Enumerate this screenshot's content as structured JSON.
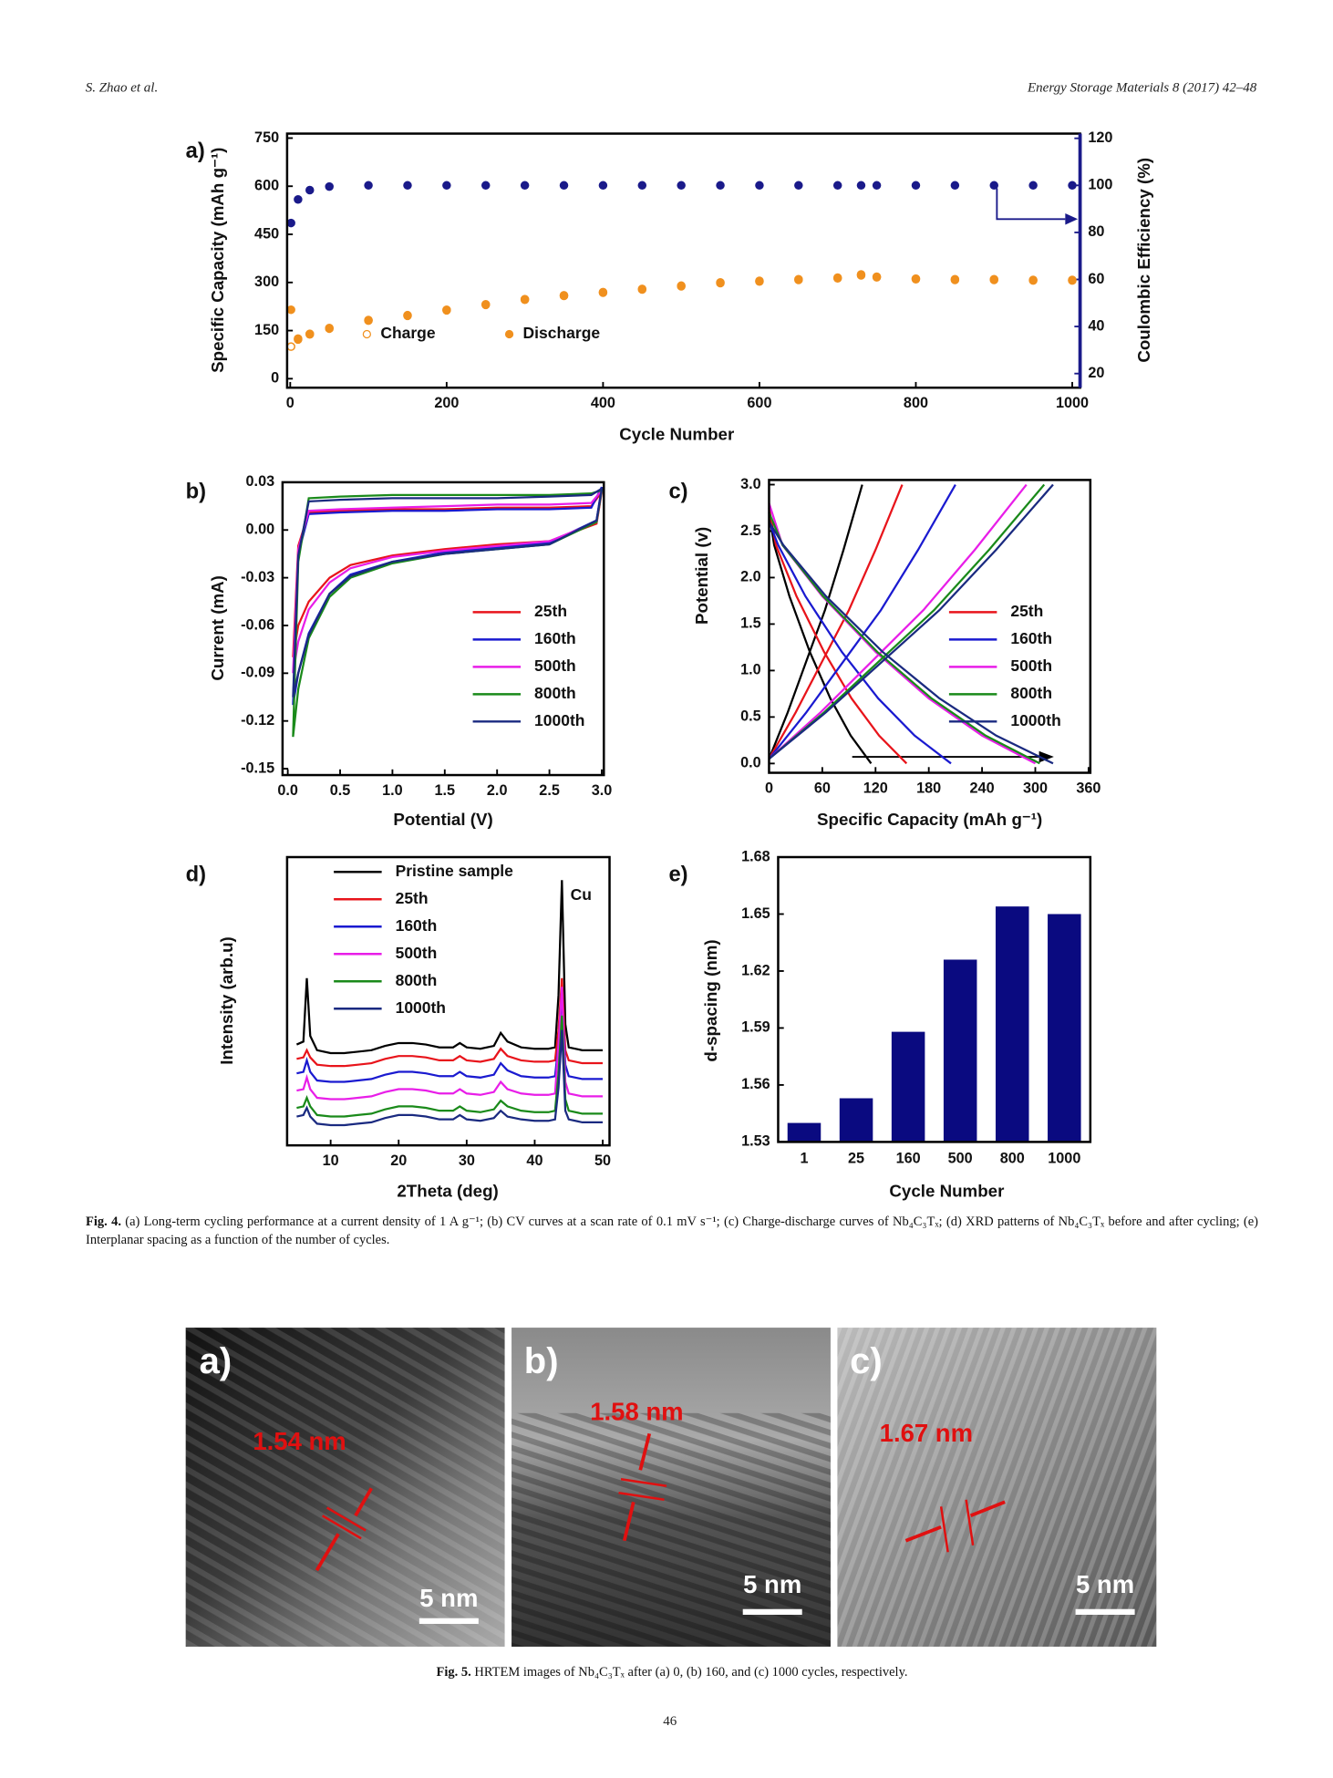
{
  "header": {
    "left": "S. Zhao et al.",
    "right": "Energy Storage Materials 8 (2017) 42–48"
  },
  "chart_data": [
    {
      "type": "line",
      "panel_label": "a)",
      "x_label": "Cycle Number",
      "y_label": "Specific Capacity (mAh g⁻¹)",
      "y2_label": "Coulombic Efficiency (%)",
      "markers": true,
      "x": [
        1,
        10,
        25,
        50,
        100,
        150,
        200,
        250,
        300,
        350,
        400,
        450,
        500,
        550,
        600,
        650,
        700,
        730,
        750,
        800,
        850,
        900,
        950,
        1000
      ],
      "series": [
        {
          "name": "Charge",
          "color": "#f0901e",
          "marker_style": "hollow",
          "values": [
            100,
            122,
            138,
            156,
            181,
            196,
            213,
            230,
            246,
            258,
            268,
            278,
            288,
            298,
            303,
            308,
            313,
            322,
            316,
            310,
            308,
            308,
            306,
            306
          ]
        },
        {
          "name": "Discharge",
          "color": "#f0901e",
          "marker_style": "filled",
          "values": [
            215,
            125,
            140,
            158,
            183,
            198,
            215,
            232,
            248,
            260,
            270,
            280,
            290,
            300,
            305,
            310,
            315,
            325,
            318,
            312,
            310,
            310,
            308,
            308
          ]
        },
        {
          "color": "#1a1a8a",
          "marker_style": "filled",
          "axis": "y2",
          "values": [
            84,
            94,
            98,
            99.5,
            100,
            100,
            100,
            100,
            100,
            100,
            100,
            100,
            100,
            100,
            100,
            100,
            100,
            100,
            100,
            100,
            100,
            100,
            100,
            100
          ]
        }
      ],
      "xlim": [
        -4,
        1010
      ],
      "xticks": [
        0,
        200,
        400,
        600,
        800,
        1000
      ],
      "ylim": [
        -28,
        764
      ],
      "yticks": [
        0,
        150,
        300,
        450,
        600,
        750
      ],
      "y2lim": [
        14,
        122
      ],
      "y2ticks": [
        20,
        40,
        60,
        80,
        100,
        120
      ]
    },
    {
      "type": "line",
      "panel_label": "b)",
      "x_label": "Potential (V)",
      "y_label": "Current (mA)",
      "x": [
        0.05,
        0.1,
        0.2,
        0.5,
        1,
        1.5,
        2,
        2.5,
        2.9,
        3.0,
        2.95,
        2.5,
        2,
        1.5,
        1,
        0.6,
        0.4,
        0.2,
        0.1,
        0.05
      ],
      "series": [
        {
          "name": "25th",
          "color": "#e8141b",
          "values": [
            -0.08,
            -0.01,
            0.011,
            0.012,
            0.013,
            0.013,
            0.014,
            0.014,
            0.015,
            0.024,
            0.004,
            -0.007,
            -0.009,
            -0.012,
            -0.016,
            -0.022,
            -0.03,
            -0.045,
            -0.06,
            -0.08
          ]
        },
        {
          "name": "160th",
          "color": "#1a1ad0",
          "values": [
            -0.11,
            -0.015,
            0.01,
            0.011,
            0.012,
            0.012,
            0.013,
            0.013,
            0.014,
            0.027,
            0.006,
            -0.008,
            -0.011,
            -0.014,
            -0.02,
            -0.028,
            -0.04,
            -0.065,
            -0.09,
            -0.11
          ]
        },
        {
          "name": "500th",
          "color": "#e81ee8",
          "values": [
            -0.09,
            -0.012,
            0.012,
            0.013,
            0.014,
            0.015,
            0.016,
            0.016,
            0.017,
            0.025,
            0.005,
            -0.007,
            -0.01,
            -0.013,
            -0.017,
            -0.024,
            -0.033,
            -0.05,
            -0.07,
            -0.09
          ]
        },
        {
          "name": "800th",
          "color": "#1a8a1a",
          "values": [
            -0.13,
            -0.02,
            0.02,
            0.021,
            0.022,
            0.022,
            0.022,
            0.022,
            0.023,
            0.025,
            0.005,
            -0.009,
            -0.012,
            -0.015,
            -0.021,
            -0.03,
            -0.042,
            -0.068,
            -0.1,
            -0.13
          ]
        },
        {
          "name": "1000th",
          "color": "#1a2a80",
          "values": [
            -0.105,
            -0.016,
            0.018,
            0.019,
            0.02,
            0.02,
            0.02,
            0.021,
            0.022,
            0.026,
            0.006,
            -0.009,
            -0.012,
            -0.015,
            -0.02,
            -0.029,
            -0.04,
            -0.066,
            -0.09,
            -0.105
          ]
        }
      ],
      "xlim": [
        -0.05,
        3.02
      ],
      "xticks": [
        {
          "value": 0,
          "label": "0.0"
        },
        0.5,
        {
          "value": 1,
          "label": "1.0"
        },
        1.5,
        {
          "value": 2,
          "label": "2.0"
        },
        2.5,
        {
          "value": 3,
          "label": "3.0"
        }
      ],
      "ylim": [
        -0.154,
        0.03
      ],
      "yticks": [
        0.03,
        {
          "value": 0,
          "label": "0.00"
        },
        -0.03,
        -0.06,
        -0.09,
        -0.12,
        -0.15
      ]
    },
    {
      "type": "line",
      "panel_label": "c)",
      "x_label": "Specific Capacity (mAh g⁻¹)",
      "y_label": "Potential (v)",
      "series": [
        {
          "color": "#000000",
          "x": [
            0,
            5.75,
            23,
            46,
            69,
            92,
            115,
            null,
            0,
            21,
            42,
            63,
            84,
            105
          ],
          "values": [
            2.7,
            2.35,
            1.8,
            1.2,
            0.7,
            0.3,
            0,
            null,
            0.05,
            0.55,
            1.1,
            1.65,
            2.3,
            3.0
          ]
        },
        {
          "name": "25th",
          "color": "#e8141b",
          "x": [
            0,
            7.75,
            31,
            62,
            93,
            124,
            155,
            null,
            0,
            30,
            60,
            90,
            120,
            150
          ],
          "values": [
            2.75,
            2.35,
            1.8,
            1.2,
            0.7,
            0.3,
            0,
            null,
            0.05,
            0.55,
            1.1,
            1.65,
            2.3,
            3.0
          ]
        },
        {
          "name": "160th",
          "color": "#1a1ad0",
          "x": [
            0,
            10.25,
            41,
            82,
            123,
            164,
            205,
            null,
            0,
            42,
            84,
            126,
            168,
            210
          ],
          "values": [
            2.6,
            2.35,
            1.8,
            1.2,
            0.7,
            0.3,
            0,
            null,
            0.05,
            0.55,
            1.1,
            1.65,
            2.3,
            3.0
          ]
        },
        {
          "name": "500th",
          "color": "#e81ee8",
          "x": [
            0,
            15,
            60,
            120,
            180,
            240,
            300,
            null,
            0,
            58,
            116,
            174,
            232,
            290
          ],
          "values": [
            2.8,
            2.35,
            1.8,
            1.2,
            0.7,
            0.3,
            0,
            null,
            0.05,
            0.55,
            1.1,
            1.65,
            2.3,
            3.0
          ]
        },
        {
          "name": "800th",
          "color": "#1a8a1a",
          "x": [
            0,
            15.25,
            61,
            122,
            183,
            244,
            305,
            null,
            0,
            62,
            124,
            186,
            248,
            310
          ],
          "values": [
            2.7,
            2.35,
            1.8,
            1.2,
            0.7,
            0.3,
            0,
            null,
            0.05,
            0.55,
            1.1,
            1.65,
            2.3,
            3.0
          ]
        },
        {
          "name": "1000th",
          "color": "#1a2a80",
          "x": [
            0,
            16,
            64,
            128,
            192,
            256,
            320,
            null,
            0,
            64,
            128,
            192,
            256,
            320
          ],
          "values": [
            2.6,
            2.35,
            1.8,
            1.2,
            0.7,
            0.3,
            0,
            null,
            0.05,
            0.55,
            1.1,
            1.65,
            2.3,
            3.0
          ]
        }
      ],
      "xlim": [
        0,
        362
      ],
      "xticks": [
        0,
        60,
        120,
        180,
        240,
        300,
        360
      ],
      "ylim": [
        -0.1,
        3.05
      ],
      "yticks": [
        {
          "value": 0,
          "label": "0.0"
        },
        0.5,
        {
          "value": 1,
          "label": "1.0"
        },
        1.5,
        {
          "value": 2,
          "label": "2.0"
        },
        2.5,
        {
          "value": 3,
          "label": "3.0"
        }
      ]
    },
    {
      "type": "line",
      "panel_label": "d)",
      "x_label": "2Theta (deg)",
      "y_label": "Intensity (arb.u)",
      "annotation": "Cu",
      "x": [
        5,
        6,
        6.5,
        7,
        8,
        10,
        12,
        14,
        16,
        18,
        20,
        22,
        24,
        26,
        28,
        29,
        30,
        32,
        34,
        35,
        36,
        38,
        40,
        42,
        43,
        43.5,
        44,
        44.5,
        45,
        47,
        50
      ],
      "series": [
        {
          "name": "Pristine sample",
          "color": "#000000",
          "values": [
            3.5,
            3.6,
            5.8,
            3.8,
            3.3,
            3.2,
            3.2,
            3.25,
            3.3,
            3.45,
            3.55,
            3.55,
            3.5,
            3.4,
            3.4,
            3.55,
            3.4,
            3.35,
            3.45,
            3.9,
            3.6,
            3.4,
            3.35,
            3.35,
            3.4,
            5.2,
            9.2,
            4.2,
            3.4,
            3.3,
            3.3
          ]
        },
        {
          "name": "25th",
          "color": "#e8141b",
          "values": [
            3.0,
            3.05,
            3.3,
            3.05,
            2.8,
            2.75,
            2.75,
            2.8,
            2.85,
            3.0,
            3.1,
            3.1,
            3.05,
            2.95,
            2.95,
            3.1,
            2.95,
            2.9,
            3.0,
            3.35,
            3.1,
            2.95,
            2.9,
            2.9,
            2.95,
            4.0,
            5.8,
            3.3,
            2.95,
            2.85,
            2.85
          ]
        },
        {
          "name": "160th",
          "color": "#1a1ad0",
          "values": [
            2.5,
            2.55,
            2.95,
            2.55,
            2.25,
            2.2,
            2.2,
            2.25,
            2.3,
            2.45,
            2.55,
            2.55,
            2.5,
            2.4,
            2.4,
            2.55,
            2.4,
            2.35,
            2.45,
            2.85,
            2.6,
            2.4,
            2.35,
            2.35,
            2.4,
            3.5,
            5.2,
            2.8,
            2.4,
            2.3,
            2.3
          ]
        },
        {
          "name": "500th",
          "color": "#e81ee8",
          "values": [
            1.9,
            1.95,
            2.35,
            1.95,
            1.65,
            1.6,
            1.6,
            1.65,
            1.7,
            1.85,
            1.95,
            1.95,
            1.9,
            1.8,
            1.8,
            1.95,
            1.8,
            1.75,
            1.85,
            2.2,
            1.95,
            1.8,
            1.75,
            1.75,
            1.8,
            3.5,
            5.5,
            2.2,
            1.8,
            1.7,
            1.7
          ]
        },
        {
          "name": "800th",
          "color": "#1a8a1a",
          "values": [
            1.3,
            1.35,
            1.65,
            1.35,
            1.05,
            1.0,
            1.0,
            1.05,
            1.1,
            1.25,
            1.35,
            1.35,
            1.3,
            1.2,
            1.2,
            1.35,
            1.2,
            1.15,
            1.25,
            1.55,
            1.35,
            1.2,
            1.15,
            1.15,
            1.2,
            2.5,
            4.5,
            1.6,
            1.2,
            1.1,
            1.1
          ]
        },
        {
          "name": "1000th",
          "color": "#1a2a80",
          "values": [
            1.0,
            1.05,
            1.3,
            1.0,
            0.75,
            0.7,
            0.7,
            0.75,
            0.8,
            0.95,
            1.05,
            1.05,
            1.0,
            0.9,
            0.9,
            1.05,
            0.9,
            0.85,
            0.95,
            1.2,
            1.0,
            0.9,
            0.85,
            0.85,
            0.9,
            2.0,
            4.0,
            1.2,
            0.9,
            0.8,
            0.8
          ]
        }
      ],
      "xlim": [
        3.6,
        51
      ],
      "xticks": [
        10,
        20,
        30,
        40,
        50
      ],
      "ylim": [
        0,
        10
      ]
    },
    {
      "type": "bar",
      "panel_label": "e)",
      "x_label": "Cycle Number",
      "y_label": "d-spacing (nm)",
      "color": "#0a0a80",
      "categories": [
        "1",
        "25",
        "160",
        "500",
        "800",
        "1000"
      ],
      "values": [
        1.54,
        1.553,
        1.588,
        1.626,
        1.654,
        1.65
      ],
      "ylim": [
        1.53,
        1.68
      ],
      "yticks": [
        1.53,
        1.56,
        1.59,
        1.62,
        1.65,
        1.68
      ]
    }
  ],
  "figure4": {
    "caption_label": "Fig. 4.",
    "caption": "(a) Long-term cycling performance at a current density of 1 A g⁻¹; (b) CV curves at a scan rate of 0.1 mV s⁻¹; (c) Charge-discharge curves of Nb₄C₃Tₓ; (d) XRD patterns of Nb₄C₃Tₓ before and after cycling; (e) Interplanar spacing as a function of the number of cycles."
  },
  "figure5": {
    "panels": [
      {
        "label": "a)",
        "measure": "1.54 nm",
        "scale": "5 nm"
      },
      {
        "label": "b)",
        "measure": "1.58 nm",
        "scale": "5 nm"
      },
      {
        "label": "c)",
        "measure": "1.67 nm",
        "scale": "5 nm"
      }
    ],
    "caption_label": "Fig. 5.",
    "caption": "HRTEM images of Nb₄C₃Tₓ after (a) 0, (b) 160, and (c) 1000 cycles, respectively."
  },
  "page_number": "46"
}
